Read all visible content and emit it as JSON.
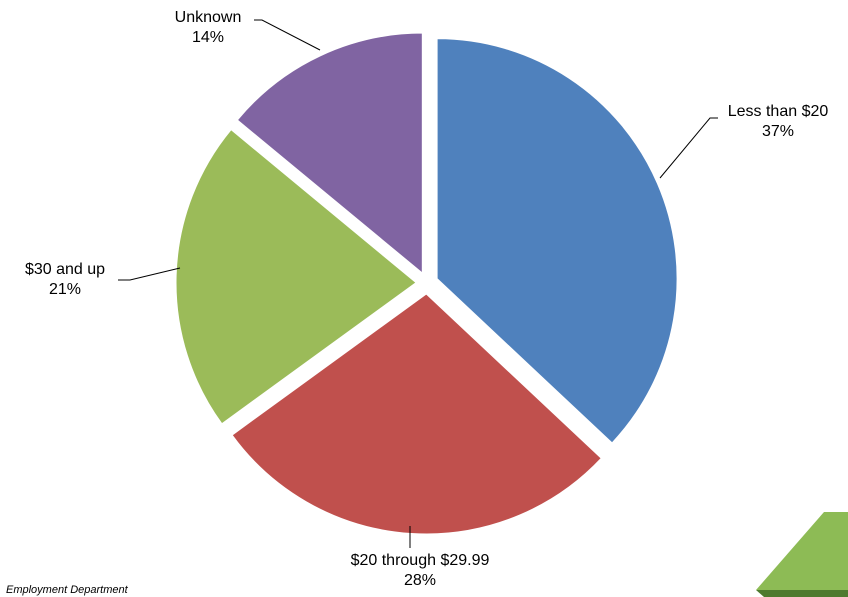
{
  "chart_data": {
    "type": "pie",
    "title": "",
    "start_angle_deg": 0,
    "direction": "clockwise",
    "exploded": true,
    "slices": [
      {
        "label": "Less than $20",
        "value": 37,
        "value_label": "37%",
        "color": "#4F81BD"
      },
      {
        "label": "$20 through $29.99",
        "value": 28,
        "value_label": "28%",
        "color": "#C0504D"
      },
      {
        "label": "$30 and up",
        "value": 21,
        "value_label": "21%",
        "color": "#9BBB59"
      },
      {
        "label": "Unknown",
        "value": 14,
        "value_label": "14%",
        "color": "#8064A2"
      }
    ]
  },
  "source_text": "Employment Department",
  "logo": {
    "color": "#8DBB55",
    "icon": "green-shape-logo-icon"
  }
}
